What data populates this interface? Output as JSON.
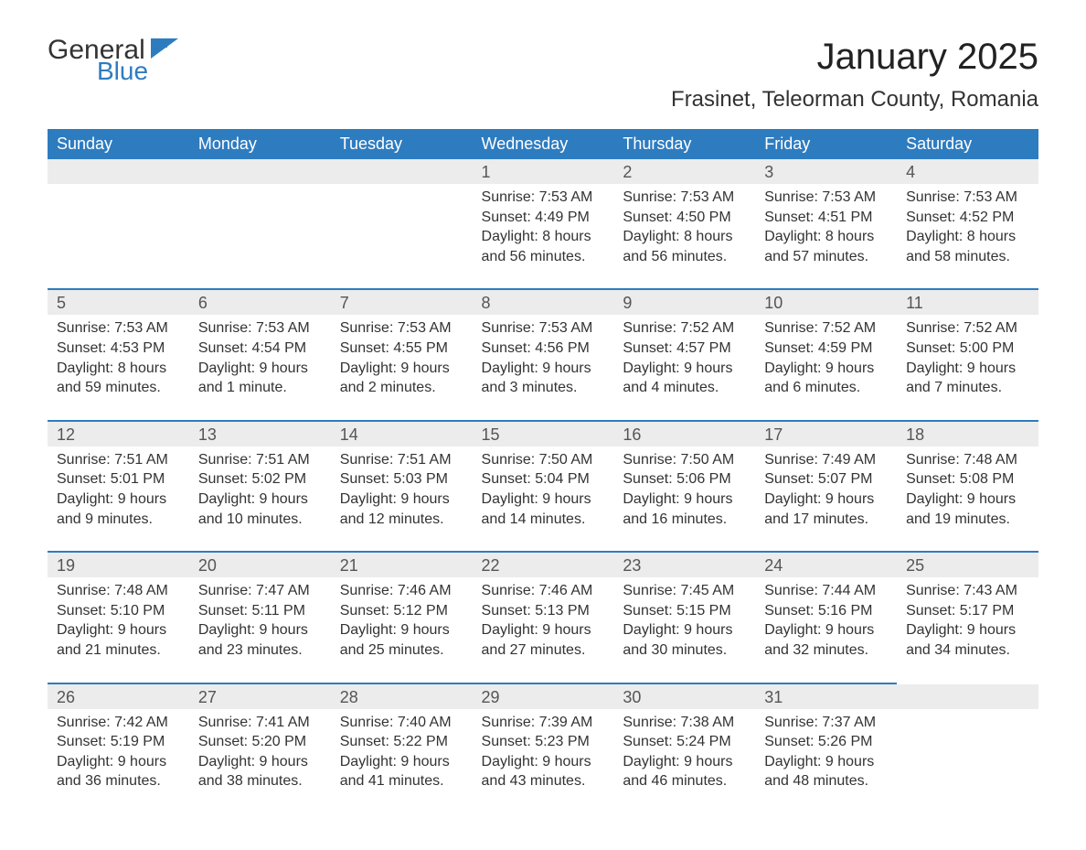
{
  "logo": {
    "word1": "General",
    "word2": "Blue"
  },
  "title": "January 2025",
  "location": "Frasinet, Teleorman County, Romania",
  "colors": {
    "header_blue": "#2e7cc0",
    "row_stripe": "#ececec",
    "text": "#333333"
  },
  "days_of_week": [
    "Sunday",
    "Monday",
    "Tuesday",
    "Wednesday",
    "Thursday",
    "Friday",
    "Saturday"
  ],
  "weeks": [
    [
      null,
      null,
      null,
      {
        "n": "1",
        "l": [
          "Sunrise: 7:53 AM",
          "Sunset: 4:49 PM",
          "Daylight: 8 hours",
          "and 56 minutes."
        ]
      },
      {
        "n": "2",
        "l": [
          "Sunrise: 7:53 AM",
          "Sunset: 4:50 PM",
          "Daylight: 8 hours",
          "and 56 minutes."
        ]
      },
      {
        "n": "3",
        "l": [
          "Sunrise: 7:53 AM",
          "Sunset: 4:51 PM",
          "Daylight: 8 hours",
          "and 57 minutes."
        ]
      },
      {
        "n": "4",
        "l": [
          "Sunrise: 7:53 AM",
          "Sunset: 4:52 PM",
          "Daylight: 8 hours",
          "and 58 minutes."
        ]
      }
    ],
    [
      {
        "n": "5",
        "l": [
          "Sunrise: 7:53 AM",
          "Sunset: 4:53 PM",
          "Daylight: 8 hours",
          "and 59 minutes."
        ]
      },
      {
        "n": "6",
        "l": [
          "Sunrise: 7:53 AM",
          "Sunset: 4:54 PM",
          "Daylight: 9 hours",
          "and 1 minute."
        ]
      },
      {
        "n": "7",
        "l": [
          "Sunrise: 7:53 AM",
          "Sunset: 4:55 PM",
          "Daylight: 9 hours",
          "and 2 minutes."
        ]
      },
      {
        "n": "8",
        "l": [
          "Sunrise: 7:53 AM",
          "Sunset: 4:56 PM",
          "Daylight: 9 hours",
          "and 3 minutes."
        ]
      },
      {
        "n": "9",
        "l": [
          "Sunrise: 7:52 AM",
          "Sunset: 4:57 PM",
          "Daylight: 9 hours",
          "and 4 minutes."
        ]
      },
      {
        "n": "10",
        "l": [
          "Sunrise: 7:52 AM",
          "Sunset: 4:59 PM",
          "Daylight: 9 hours",
          "and 6 minutes."
        ]
      },
      {
        "n": "11",
        "l": [
          "Sunrise: 7:52 AM",
          "Sunset: 5:00 PM",
          "Daylight: 9 hours",
          "and 7 minutes."
        ]
      }
    ],
    [
      {
        "n": "12",
        "l": [
          "Sunrise: 7:51 AM",
          "Sunset: 5:01 PM",
          "Daylight: 9 hours",
          "and 9 minutes."
        ]
      },
      {
        "n": "13",
        "l": [
          "Sunrise: 7:51 AM",
          "Sunset: 5:02 PM",
          "Daylight: 9 hours",
          "and 10 minutes."
        ]
      },
      {
        "n": "14",
        "l": [
          "Sunrise: 7:51 AM",
          "Sunset: 5:03 PM",
          "Daylight: 9 hours",
          "and 12 minutes."
        ]
      },
      {
        "n": "15",
        "l": [
          "Sunrise: 7:50 AM",
          "Sunset: 5:04 PM",
          "Daylight: 9 hours",
          "and 14 minutes."
        ]
      },
      {
        "n": "16",
        "l": [
          "Sunrise: 7:50 AM",
          "Sunset: 5:06 PM",
          "Daylight: 9 hours",
          "and 16 minutes."
        ]
      },
      {
        "n": "17",
        "l": [
          "Sunrise: 7:49 AM",
          "Sunset: 5:07 PM",
          "Daylight: 9 hours",
          "and 17 minutes."
        ]
      },
      {
        "n": "18",
        "l": [
          "Sunrise: 7:48 AM",
          "Sunset: 5:08 PM",
          "Daylight: 9 hours",
          "and 19 minutes."
        ]
      }
    ],
    [
      {
        "n": "19",
        "l": [
          "Sunrise: 7:48 AM",
          "Sunset: 5:10 PM",
          "Daylight: 9 hours",
          "and 21 minutes."
        ]
      },
      {
        "n": "20",
        "l": [
          "Sunrise: 7:47 AM",
          "Sunset: 5:11 PM",
          "Daylight: 9 hours",
          "and 23 minutes."
        ]
      },
      {
        "n": "21",
        "l": [
          "Sunrise: 7:46 AM",
          "Sunset: 5:12 PM",
          "Daylight: 9 hours",
          "and 25 minutes."
        ]
      },
      {
        "n": "22",
        "l": [
          "Sunrise: 7:46 AM",
          "Sunset: 5:13 PM",
          "Daylight: 9 hours",
          "and 27 minutes."
        ]
      },
      {
        "n": "23",
        "l": [
          "Sunrise: 7:45 AM",
          "Sunset: 5:15 PM",
          "Daylight: 9 hours",
          "and 30 minutes."
        ]
      },
      {
        "n": "24",
        "l": [
          "Sunrise: 7:44 AM",
          "Sunset: 5:16 PM",
          "Daylight: 9 hours",
          "and 32 minutes."
        ]
      },
      {
        "n": "25",
        "l": [
          "Sunrise: 7:43 AM",
          "Sunset: 5:17 PM",
          "Daylight: 9 hours",
          "and 34 minutes."
        ]
      }
    ],
    [
      {
        "n": "26",
        "l": [
          "Sunrise: 7:42 AM",
          "Sunset: 5:19 PM",
          "Daylight: 9 hours",
          "and 36 minutes."
        ]
      },
      {
        "n": "27",
        "l": [
          "Sunrise: 7:41 AM",
          "Sunset: 5:20 PM",
          "Daylight: 9 hours",
          "and 38 minutes."
        ]
      },
      {
        "n": "28",
        "l": [
          "Sunrise: 7:40 AM",
          "Sunset: 5:22 PM",
          "Daylight: 9 hours",
          "and 41 minutes."
        ]
      },
      {
        "n": "29",
        "l": [
          "Sunrise: 7:39 AM",
          "Sunset: 5:23 PM",
          "Daylight: 9 hours",
          "and 43 minutes."
        ]
      },
      {
        "n": "30",
        "l": [
          "Sunrise: 7:38 AM",
          "Sunset: 5:24 PM",
          "Daylight: 9 hours",
          "and 46 minutes."
        ]
      },
      {
        "n": "31",
        "l": [
          "Sunrise: 7:37 AM",
          "Sunset: 5:26 PM",
          "Daylight: 9 hours",
          "and 48 minutes."
        ]
      },
      null
    ]
  ]
}
